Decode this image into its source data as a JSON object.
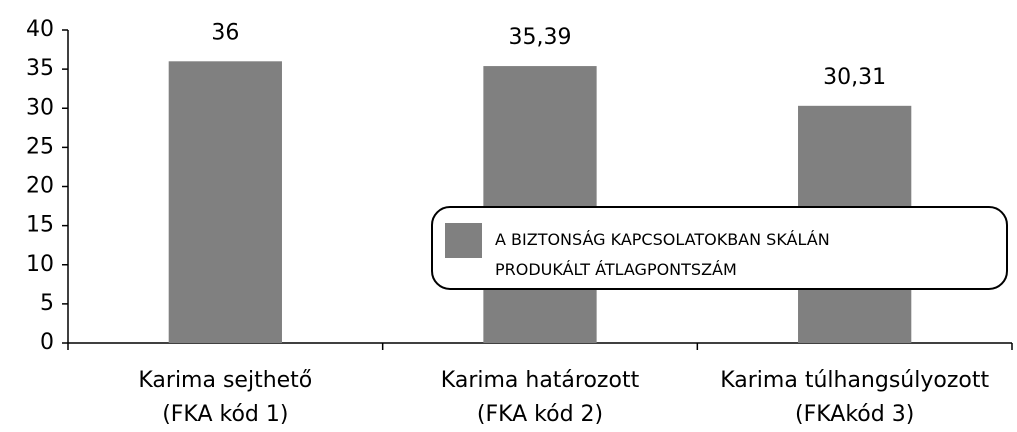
{
  "chart_data": {
    "type": "bar",
    "categories": [
      "Karima sejthető\n(FKA kód 1)",
      "Karima határozott\n(FKA kód 2)",
      "Karima túlhangsúlyozott\n(FKAkód 3)"
    ],
    "series": [
      {
        "name": "A BIZTONSÁG KAPCSOLATOKBAN SKÁLÁN\nPRODUKÁLT ÁTLAGPONTSZÁM",
        "color": "#808080",
        "values": [
          36,
          35.39,
          30.31
        ],
        "value_labels": [
          "36",
          "35,39",
          "30,31"
        ]
      }
    ],
    "ylim": [
      0,
      40
    ],
    "yticks": [
      0,
      5,
      10,
      15,
      20,
      25,
      30,
      35,
      40
    ],
    "grid": false,
    "legend": "lower right"
  }
}
